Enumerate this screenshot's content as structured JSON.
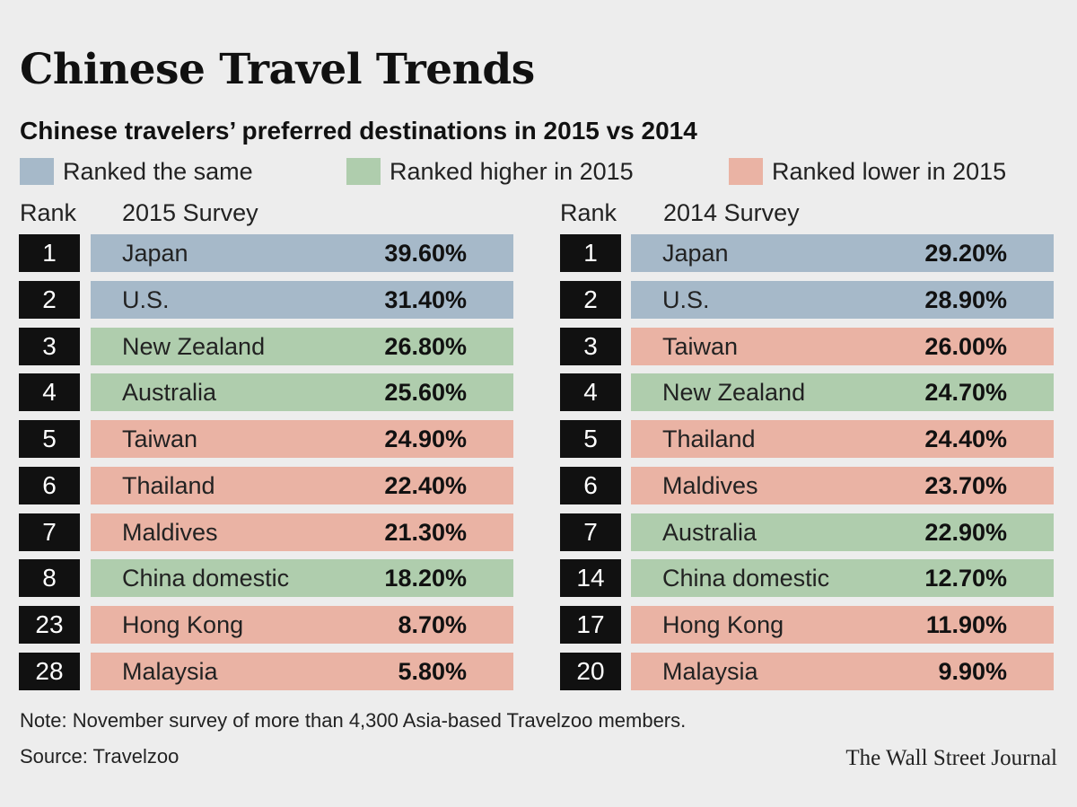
{
  "chart_data": {
    "type": "table",
    "title": "Chinese Travel Trends",
    "subtitle": "Chinese travelers’ preferred destinations in 2015 vs 2014",
    "legend": [
      {
        "key": "same",
        "label": "Ranked the same",
        "color": "#a6b9c9"
      },
      {
        "key": "higher",
        "label": "Ranked higher in 2015",
        "color": "#afcdad"
      },
      {
        "key": "lower",
        "label": "Ranked lower in 2015",
        "color": "#eab3a4"
      }
    ],
    "tables": [
      {
        "rank_header": "Rank",
        "survey_header": "2015 Survey",
        "rows": [
          {
            "rank": "1",
            "country": "Japan",
            "pct": "39.60%",
            "status": "same"
          },
          {
            "rank": "2",
            "country": "U.S.",
            "pct": "31.40%",
            "status": "same"
          },
          {
            "rank": "3",
            "country": "New Zealand",
            "pct": "26.80%",
            "status": "higher"
          },
          {
            "rank": "4",
            "country": "Australia",
            "pct": "25.60%",
            "status": "higher"
          },
          {
            "rank": "5",
            "country": "Taiwan",
            "pct": "24.90%",
            "status": "lower"
          },
          {
            "rank": "6",
            "country": "Thailand",
            "pct": "22.40%",
            "status": "lower"
          },
          {
            "rank": "7",
            "country": "Maldives",
            "pct": "21.30%",
            "status": "lower"
          },
          {
            "rank": "8",
            "country": "China domestic",
            "pct": "18.20%",
            "status": "higher"
          },
          {
            "rank": "23",
            "country": "Hong Kong",
            "pct": "8.70%",
            "status": "lower"
          },
          {
            "rank": "28",
            "country": "Malaysia",
            "pct": "5.80%",
            "status": "lower"
          }
        ]
      },
      {
        "rank_header": "Rank",
        "survey_header": "2014 Survey",
        "rows": [
          {
            "rank": "1",
            "country": "Japan",
            "pct": "29.20%",
            "status": "same"
          },
          {
            "rank": "2",
            "country": "U.S.",
            "pct": "28.90%",
            "status": "same"
          },
          {
            "rank": "3",
            "country": "Taiwan",
            "pct": "26.00%",
            "status": "lower"
          },
          {
            "rank": "4",
            "country": "New Zealand",
            "pct": "24.70%",
            "status": "higher"
          },
          {
            "rank": "5",
            "country": "Thailand",
            "pct": "24.40%",
            "status": "lower"
          },
          {
            "rank": "6",
            "country": "Maldives",
            "pct": "23.70%",
            "status": "lower"
          },
          {
            "rank": "7",
            "country": "Australia",
            "pct": "22.90%",
            "status": "higher"
          },
          {
            "rank": "14",
            "country": "China domestic",
            "pct": "12.70%",
            "status": "higher"
          },
          {
            "rank": "17",
            "country": "Hong Kong",
            "pct": "11.90%",
            "status": "lower"
          },
          {
            "rank": "20",
            "country": "Malaysia",
            "pct": "9.90%",
            "status": "lower"
          }
        ]
      }
    ]
  },
  "footer": {
    "note": "Note: November survey of more than 4,300 Asia-based Travelzoo members.",
    "source": "Source: Travelzoo",
    "credit": "The Wall Street Journal"
  }
}
